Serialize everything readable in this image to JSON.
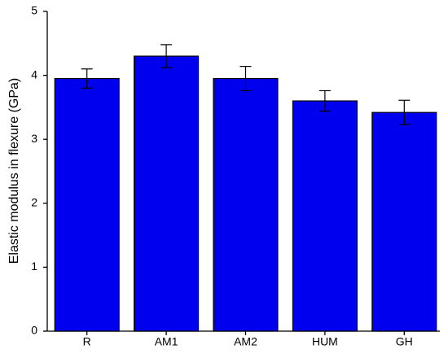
{
  "chart_data": {
    "type": "bar",
    "y_label": "Elastic modulus in flexure (GPa)",
    "categories": [
      "R",
      "AM1",
      "AM2",
      "HUM",
      "GH"
    ],
    "values": [
      3.95,
      4.3,
      3.95,
      3.6,
      3.42
    ],
    "errors": [
      0.15,
      0.18,
      0.19,
      0.16,
      0.19
    ],
    "color": "#0000ee",
    "ylim": [
      0,
      5
    ],
    "yticks": [
      0,
      1,
      2,
      3,
      4,
      5
    ],
    "grid": false
  }
}
